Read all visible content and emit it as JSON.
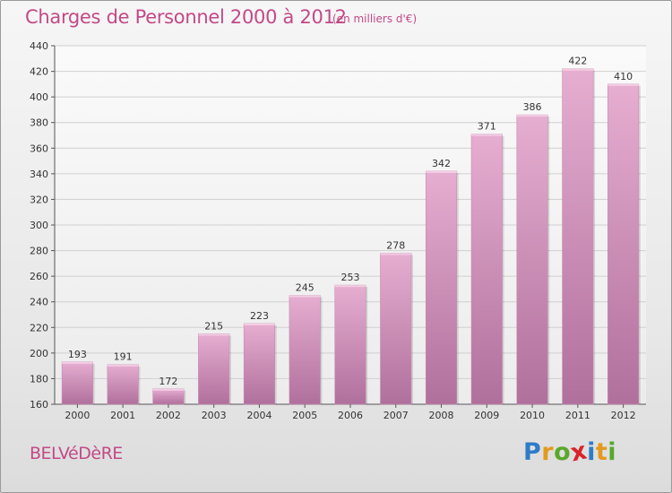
{
  "header": {
    "title": "Charges de Personnel 2000 à 2012",
    "subtitle": "(en milliers d'€)"
  },
  "footer": {
    "commune": "BELVéDèRE",
    "logo_letters": [
      "P",
      "r",
      "o",
      "x",
      "i",
      "t",
      "i"
    ],
    "logo_colors": [
      "#2e7cc8",
      "#e39a1e",
      "#5aa82a",
      "#d8242a",
      "#2e7cc8",
      "#e39a1e",
      "#5aa82a"
    ]
  },
  "colors": {
    "bar_top": "#e6aed1",
    "bar_bottom": "#b0709c",
    "title": "#c24a87"
  },
  "chart_data": {
    "type": "bar",
    "title": "Charges de Personnel 2000 à 2012",
    "subtitle": "(en milliers d'€)",
    "categories": [
      "2000",
      "2001",
      "2002",
      "2003",
      "2004",
      "2005",
      "2006",
      "2007",
      "2008",
      "2009",
      "2010",
      "2011",
      "2012"
    ],
    "values": [
      193,
      191,
      172,
      215,
      223,
      245,
      253,
      278,
      342,
      371,
      386,
      422,
      410
    ],
    "ylim": [
      160,
      440
    ],
    "yticks": [
      160,
      180,
      200,
      220,
      240,
      260,
      280,
      300,
      320,
      340,
      360,
      380,
      400,
      420,
      440
    ],
    "xlabel": "",
    "ylabel": "",
    "grid": true
  }
}
